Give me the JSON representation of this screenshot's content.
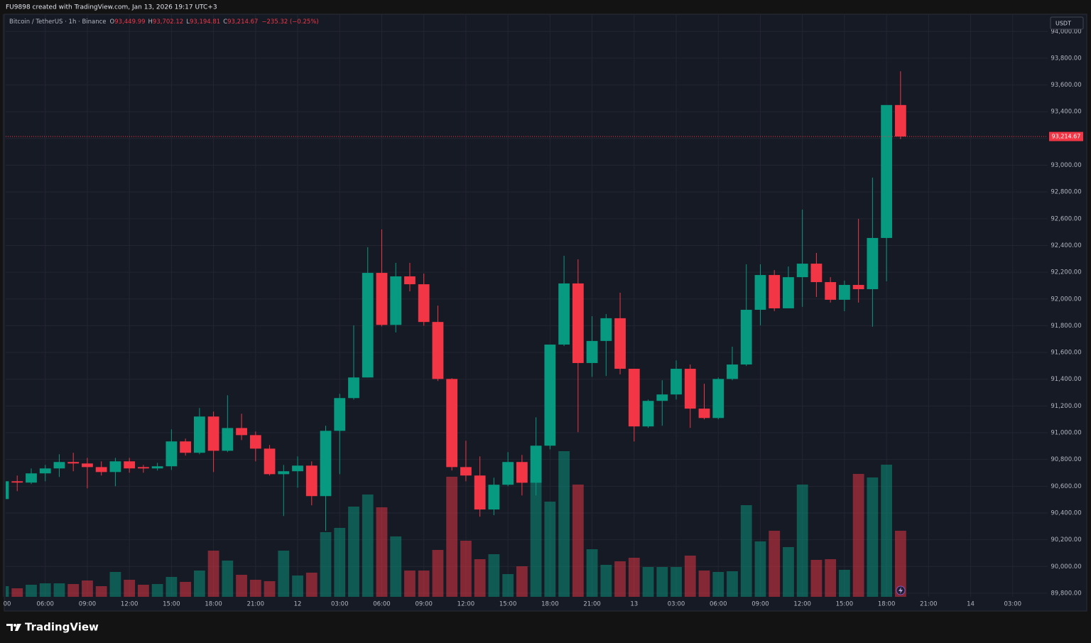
{
  "header": {
    "attribution": "FU9898 created with TradingView.com, Jan 13, 2026 19:17 UTC+3",
    "brand": "TradingView"
  },
  "chart_data": {
    "type": "candlestick",
    "title": "Bitcoin / TetherUS · 1h · Binance",
    "ohlc_legend": [
      {
        "key": "O",
        "label": "93,449.99"
      },
      {
        "key": "H",
        "label": "93,702.12"
      },
      {
        "key": "L",
        "label": "93,194.81"
      },
      {
        "key": "C",
        "label": "93,214.67"
      }
    ],
    "change_label": "−235.32 (−0.25%)",
    "currency": "USDT",
    "categories": [
      "00",
      null,
      null,
      "06:00",
      null,
      null,
      "09:00",
      null,
      null,
      "12:00",
      null,
      null,
      "15:00",
      null,
      null,
      "18:00",
      null,
      null,
      "21:00",
      null,
      null,
      "12",
      null,
      null,
      "03:00",
      null,
      null,
      "06:00",
      null,
      null,
      "09:00",
      null,
      null,
      "12:00",
      null,
      null,
      "15:00",
      null,
      null,
      "18:00",
      null,
      null,
      "21:00",
      null,
      null,
      "13",
      null,
      null,
      "03:00",
      null,
      null,
      "06:00",
      null,
      null,
      "09:00",
      null,
      null,
      "12:00",
      null,
      null,
      "15:00",
      null,
      null,
      "18:00",
      null,
      null,
      "21:00",
      null,
      null,
      "14",
      null,
      null,
      "03:00"
    ],
    "open": [
      90504,
      90637,
      90627,
      90696,
      90733,
      90781,
      90770,
      90743,
      90706,
      90786,
      90743,
      90733,
      90749,
      90935,
      90850,
      91121,
      90865,
      91035,
      90982,
      90881,
      90690,
      90712,
      90754,
      90526,
      91014,
      91259,
      91413,
      92195,
      91806,
      92169,
      92110,
      91828,
      91402,
      90743,
      90680,
      90426,
      90611,
      90781,
      90626,
      90903,
      91659,
      92116,
      91521,
      91686,
      91856,
      91478,
      91047,
      91238,
      91286,
      91478,
      91180,
      91110,
      91402,
      91510,
      91919,
      92179,
      91930,
      92163,
      92264,
      92126,
      91994,
      92105,
      92073,
      92456,
      93449.99,
      null,
      null,
      null,
      null,
      null,
      null,
      null,
      null
    ],
    "high": [
      90650,
      90680,
      90733,
      90759,
      90839,
      90850,
      90812,
      90786,
      90812,
      90812,
      90759,
      90775,
      91025,
      90956,
      91185,
      91158,
      91280,
      91142,
      91009,
      90908,
      90759,
      90823,
      90786,
      91052,
      91291,
      91803,
      92387,
      92520,
      92270,
      92270,
      92190,
      91950,
      91408,
      90940,
      90823,
      90664,
      90855,
      90834,
      91115,
      91659,
      92323,
      92296,
      91871,
      91887,
      92047,
      91478,
      91248,
      91392,
      91541,
      91510,
      91366,
      91413,
      91643,
      92259,
      92259,
      92216,
      92243,
      92668,
      92344,
      92163,
      92137,
      92599,
      92907,
      93450,
      93702.12,
      null,
      null,
      null,
      null,
      null,
      null,
      null,
      null
    ],
    "low": [
      90500,
      90563,
      90616,
      90637,
      90669,
      90712,
      90584,
      90680,
      90600,
      90701,
      90701,
      90717,
      90722,
      90829,
      90839,
      90706,
      90855,
      90945,
      90786,
      90680,
      90377,
      90589,
      90457,
      90266,
      90690,
      91248,
      91413,
      91795,
      91750,
      92057,
      91800,
      91387,
      90717,
      90637,
      90372,
      90383,
      90600,
      90531,
      90531,
      90876,
      91648,
      91004,
      91418,
      91424,
      91436,
      90935,
      91036,
      91052,
      91248,
      91036,
      91100,
      91100,
      91392,
      91499,
      91803,
      91909,
      91930,
      91941,
      92015,
      91973,
      91909,
      91973,
      91792,
      92132,
      93194.81,
      null,
      null,
      null,
      null,
      null,
      null,
      null,
      null
    ],
    "close": [
      90637,
      90627,
      90696,
      90733,
      90781,
      90770,
      90743,
      90706,
      90786,
      90733,
      90733,
      90749,
      90935,
      90850,
      91121,
      90865,
      91035,
      90982,
      90881,
      90690,
      90712,
      90754,
      90526,
      91014,
      91259,
      91413,
      92195,
      91806,
      92169,
      92110,
      91828,
      91402,
      90743,
      90680,
      90426,
      90611,
      90781,
      90626,
      90903,
      91659,
      92116,
      91521,
      91686,
      91856,
      91478,
      91047,
      91238,
      91286,
      91478,
      91180,
      91110,
      91402,
      91510,
      91919,
      92179,
      91930,
      92163,
      92264,
      92126,
      91994,
      92105,
      92073,
      92456,
      93450,
      93214.67,
      null,
      null,
      null,
      null,
      null,
      null,
      null,
      null
    ],
    "volume": [
      15,
      12,
      17,
      19,
      19,
      18,
      23,
      15,
      35,
      24,
      17,
      18,
      28,
      21,
      37,
      65,
      51,
      31,
      24,
      22,
      65,
      30,
      34,
      91,
      97,
      127,
      144,
      126,
      85,
      37,
      37,
      66,
      169,
      79,
      53,
      60,
      32,
      43,
      171,
      134,
      205,
      158,
      67,
      45,
      50,
      55,
      42,
      42,
      42,
      58,
      37,
      35,
      36,
      129,
      78,
      93,
      70,
      158,
      52,
      53,
      38,
      173,
      168,
      186,
      93,
      null,
      null,
      null,
      null,
      null,
      null,
      null,
      null
    ],
    "up_color": "#089981",
    "down_color": "#f23645",
    "ylim": [
      89773,
      94129
    ],
    "yticks": [
      {
        "value": 89800,
        "label": "89,800.00"
      },
      {
        "value": 90000,
        "label": "90,000.00"
      },
      {
        "value": 90200,
        "label": "90,200.00"
      },
      {
        "value": 90400,
        "label": "90,400.00"
      },
      {
        "value": 90600,
        "label": "90,600.00"
      },
      {
        "value": 90800,
        "label": "90,800.00"
      },
      {
        "value": 91000,
        "label": "91,000.00"
      },
      {
        "value": 91200,
        "label": "91,200.00"
      },
      {
        "value": 91400,
        "label": "91,400.00"
      },
      {
        "value": 91600,
        "label": "91,600.00"
      },
      {
        "value": 91800,
        "label": "91,800.00"
      },
      {
        "value": 92000,
        "label": "92,000.00"
      },
      {
        "value": 92200,
        "label": "92,200.00"
      },
      {
        "value": 92400,
        "label": "92,400.00"
      },
      {
        "value": 92600,
        "label": "92,600.00"
      },
      {
        "value": 92800,
        "label": "92,800.00"
      },
      {
        "value": 93000,
        "label": "93,000.00"
      },
      {
        "value": 93200,
        "label": "93,200.00"
      },
      {
        "value": 93400,
        "label": "93,400.00"
      },
      {
        "value": 93600,
        "label": "93,600.00"
      },
      {
        "value": 93800,
        "label": "93,800.00"
      },
      {
        "value": 94000,
        "label": "94,000.00"
      }
    ],
    "price_line": {
      "value": 93214.67,
      "label": "93,214.67"
    },
    "grid": true
  }
}
